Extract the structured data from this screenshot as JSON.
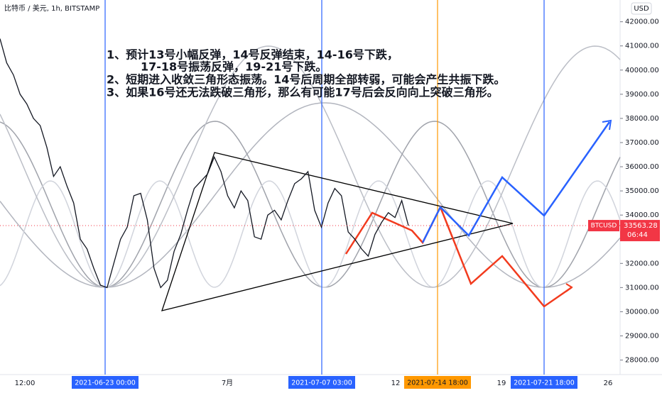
{
  "chart_data": {
    "type": "line",
    "title": "比特币 / 美元, 1h, BITSTAMP",
    "currency": "USD",
    "symbol": "BTCUSD",
    "last_price": 33563.28,
    "last_price_label": "33563.28",
    "countdown": "06:44",
    "annotations": [
      "1、预计13号小幅反弹，14号反弹结束，14-16号下跌，",
      "17-18号振荡反弹，19-21号下跌。",
      "2、短期进入收敛三角形态振荡。14号后周期全部转弱，可能会产生共振下跌。",
      "3、如果16号还无法跌破三角形，那么有可能17号后会反向向上突破三角形。"
    ],
    "series": [
      {
        "name": "BTCUSD",
        "color": "#131722",
        "values": [
          41300,
          40300,
          39800,
          39000,
          38600,
          38000,
          37700,
          36800,
          35600,
          36000,
          35200,
          34500,
          33000,
          32600,
          31800,
          31100,
          31000,
          32000,
          33000,
          33500,
          34800,
          34900,
          33800,
          31800,
          31000,
          31300,
          32500,
          33200,
          34200,
          35100,
          35400,
          35700,
          36400,
          35800,
          34800,
          34300,
          35000,
          34600,
          33100,
          33000,
          34000,
          34200,
          33800,
          34600,
          35300,
          35500,
          35800,
          34200,
          33500,
          34500,
          35100,
          34800,
          33300,
          33000,
          32600,
          32300,
          33200,
          33700,
          34100,
          33900,
          34600,
          33563.28
        ]
      }
    ],
    "ylim": [
      27400,
      42900
    ],
    "yticks": [
      {
        "value": 28000,
        "label": "28000.00"
      },
      {
        "value": 29000,
        "label": "29000.00"
      },
      {
        "value": 30000,
        "label": "30000.00"
      },
      {
        "value": 31000,
        "label": "31000.00"
      },
      {
        "value": 32000,
        "label": "32000.00"
      },
      {
        "value": 33000,
        "label": "33000.00"
      },
      {
        "value": 34000,
        "label": "34000.00"
      },
      {
        "value": 35000,
        "label": "35000.00"
      },
      {
        "value": 36000,
        "label": "36000.00"
      },
      {
        "value": 37000,
        "label": "37000.00"
      },
      {
        "value": 38000,
        "label": "38000.00"
      },
      {
        "value": 39000,
        "label": "39000.00"
      },
      {
        "value": 40000,
        "label": "40000.00"
      },
      {
        "value": 41000,
        "label": "41000.00"
      },
      {
        "value": 42000,
        "label": "42000.00"
      }
    ],
    "xtick_labels": [
      "12:00",
      "7月",
      "12",
      "19",
      "26"
    ],
    "highlighted_dates": [
      "2021-06-23  00:00",
      "2021-07-07  03:00",
      "2021-07-14  18:00",
      "2021-07-21  18:00"
    ]
  }
}
